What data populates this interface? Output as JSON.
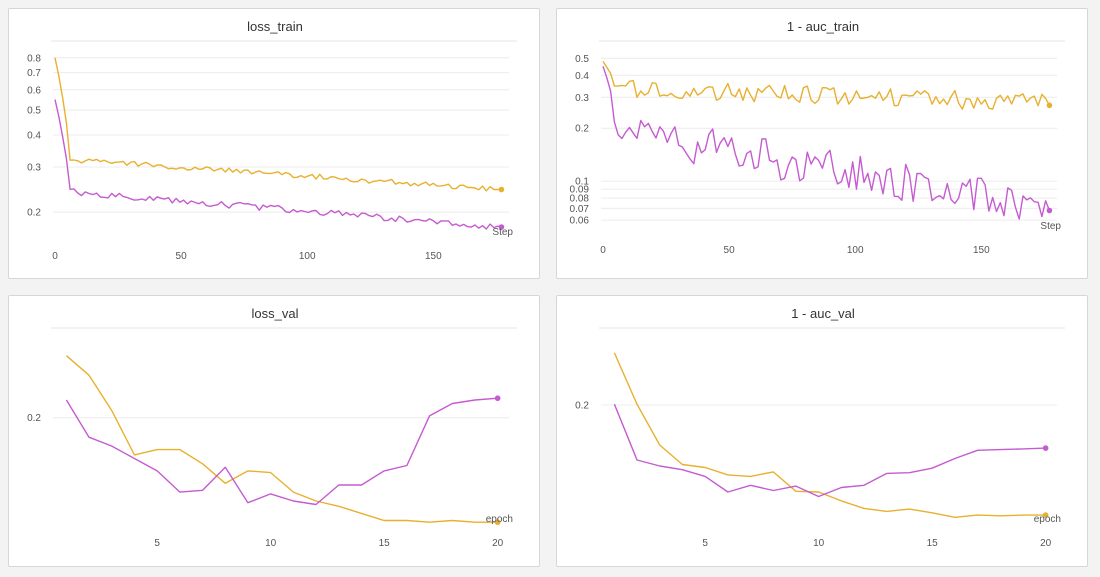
{
  "colors": {
    "orange": "#e8b02f",
    "purple": "#c55bd1"
  },
  "chart_data": [
    {
      "id": "loss_train",
      "type": "line",
      "title": "loss_train",
      "xlabel": "Step",
      "yscale": "log",
      "xlim": [
        0,
        180
      ],
      "ylim": [
        0.16,
        0.85
      ],
      "xticks": [
        0,
        50,
        100,
        150
      ],
      "yticks": [
        0.2,
        0.3,
        0.4,
        0.5,
        0.6,
        0.7,
        0.8
      ],
      "series": [
        {
          "color": "#e8b02f",
          "shape": "noisy",
          "y_start": 0.8,
          "y_early": 0.32,
          "y_end": 0.245,
          "noise": 0.025,
          "last": 0.245
        },
        {
          "color": "#c55bd1",
          "shape": "noisy",
          "y_start": 0.55,
          "y_early": 0.24,
          "y_end": 0.175,
          "noise": 0.03,
          "last": 0.175
        }
      ]
    },
    {
      "id": "auc_train",
      "type": "line",
      "title": "1 - auc_train",
      "xlabel": "Step",
      "yscale": "log",
      "xlim": [
        0,
        180
      ],
      "ylim": [
        0.052,
        0.55
      ],
      "xticks": [
        0,
        50,
        100,
        150
      ],
      "yticks": [
        0.06,
        0.07,
        0.08,
        0.09,
        0.1,
        0.2,
        0.3,
        0.4,
        0.5
      ],
      "series": [
        {
          "color": "#e8b02f",
          "shape": "noisy",
          "y_start": 0.48,
          "y_early": 0.34,
          "y_end": 0.28,
          "noise": 0.12,
          "last": 0.27
        },
        {
          "color": "#c55bd1",
          "shape": "noisy",
          "y_start": 0.45,
          "y_early": 0.2,
          "y_end": 0.07,
          "noise": 0.25,
          "last": 0.068
        }
      ]
    },
    {
      "id": "loss_val",
      "type": "line",
      "title": "loss_val",
      "xlabel": "epoch",
      "yscale": "linear",
      "xlim": [
        0.5,
        20.5
      ],
      "ylim": [
        0.14,
        0.245
      ],
      "xticks": [
        5,
        10,
        15,
        20
      ],
      "yticks": [
        0.2
      ],
      "series": [
        {
          "color": "#e8b02f",
          "x": [
            1,
            2,
            3,
            4,
            5,
            6,
            7,
            8,
            9,
            10,
            11,
            12,
            13,
            14,
            15,
            16,
            17,
            18,
            19,
            20
          ],
          "y": [
            0.235,
            0.224,
            0.204,
            0.179,
            0.182,
            0.182,
            0.174,
            0.163,
            0.17,
            0.169,
            0.158,
            0.153,
            0.15,
            0.146,
            0.142,
            0.142,
            0.141,
            0.142,
            0.141,
            0.141
          ]
        },
        {
          "color": "#c55bd1",
          "x": [
            1,
            2,
            3,
            4,
            5,
            6,
            7,
            8,
            9,
            10,
            11,
            12,
            13,
            14,
            15,
            16,
            17,
            18,
            19,
            20
          ],
          "y": [
            0.21,
            0.189,
            0.184,
            0.177,
            0.17,
            0.158,
            0.159,
            0.172,
            0.152,
            0.157,
            0.153,
            0.151,
            0.162,
            0.162,
            0.17,
            0.173,
            0.201,
            0.208,
            0.21,
            0.211
          ]
        }
      ]
    },
    {
      "id": "auc_val",
      "type": "line",
      "title": "1 - auc_val",
      "xlabel": "epoch",
      "yscale": "linear",
      "xlim": [
        0.5,
        20.5
      ],
      "ylim": [
        0.04,
        0.29
      ],
      "xticks": [
        5,
        10,
        15,
        20
      ],
      "yticks": [
        0.2
      ],
      "series": [
        {
          "color": "#e8b02f",
          "x": [
            1,
            2,
            3,
            4,
            5,
            6,
            7,
            8,
            9,
            10,
            11,
            12,
            13,
            14,
            15,
            16,
            17,
            18,
            19,
            20
          ],
          "y": [
            0.27,
            0.201,
            0.146,
            0.12,
            0.116,
            0.106,
            0.104,
            0.11,
            0.084,
            0.083,
            0.071,
            0.061,
            0.057,
            0.06,
            0.055,
            0.049,
            0.052,
            0.051,
            0.052,
            0.052
          ]
        },
        {
          "color": "#c55bd1",
          "x": [
            1,
            2,
            3,
            4,
            5,
            6,
            7,
            8,
            9,
            10,
            11,
            12,
            13,
            14,
            15,
            16,
            17,
            18,
            19,
            20
          ],
          "y": [
            0.201,
            0.126,
            0.118,
            0.113,
            0.104,
            0.083,
            0.092,
            0.085,
            0.091,
            0.077,
            0.089,
            0.092,
            0.108,
            0.109,
            0.115,
            0.128,
            0.139,
            0.14,
            0.141,
            0.142
          ]
        }
      ]
    }
  ]
}
